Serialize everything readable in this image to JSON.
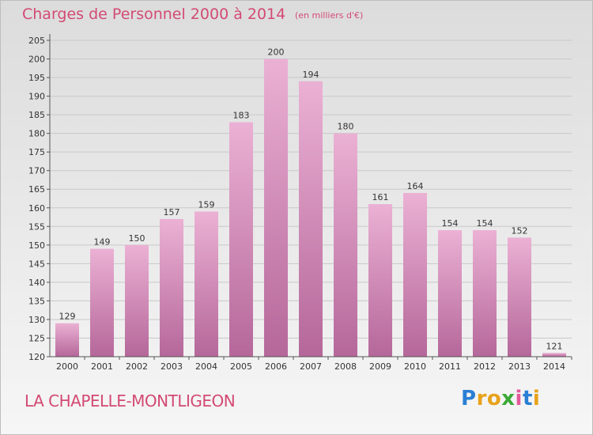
{
  "title": "Charges de Personnel 2000 à 2014",
  "subtitle": "(en milliers d'€)",
  "commune": "LA CHAPELLE-MONTLIGEON",
  "logo": {
    "text": "Proxiti",
    "letter_colors": [
      "#2a7fd4",
      "#e8a21a",
      "#e8a21a",
      "#3aa935",
      "#e35a9a",
      "#2a7fd4",
      "#e8a21a"
    ]
  },
  "colors": {
    "bar_top": "#ebb1d4",
    "bar_bottom": "#b5679a",
    "title": "#d34a74"
  },
  "chart_data": {
    "type": "bar",
    "title": "Charges de Personnel 2000 à 2014",
    "subtitle": "(en milliers d'€)",
    "categories": [
      "2000",
      "2001",
      "2002",
      "2003",
      "2004",
      "2005",
      "2006",
      "2007",
      "2008",
      "2009",
      "2010",
      "2011",
      "2012",
      "2013",
      "2014"
    ],
    "values": [
      129,
      149,
      150,
      157,
      159,
      183,
      200,
      194,
      180,
      161,
      164,
      154,
      154,
      152,
      121
    ],
    "ylim": [
      120,
      205
    ],
    "yticks": [
      120,
      125,
      130,
      135,
      140,
      145,
      150,
      155,
      160,
      165,
      170,
      175,
      180,
      185,
      190,
      195,
      200,
      205
    ],
    "grid": true,
    "data_labels": true
  }
}
